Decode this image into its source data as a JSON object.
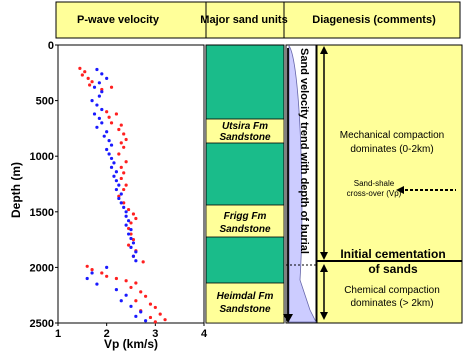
{
  "headers": {
    "col1": "P-wave velocity",
    "col2": "Major sand units",
    "col3": "Diagenesis (comments)"
  },
  "colors": {
    "header_bg": "#ffff99",
    "panel_bg": "#ffff99",
    "unit_green": "#1abc8a",
    "unit_yellow": "#ffff99",
    "trend_fill": "#ccccff",
    "series_red": "#ff2020",
    "series_blue": "#1a1aff"
  },
  "units": [
    {
      "line1": "Utsira Fm",
      "line2": "Sandstone"
    },
    {
      "line1": "Frigg Fm",
      "line2": "Sandstone"
    },
    {
      "line1": "Heimdal Fm",
      "line2": "Sandstone"
    }
  ],
  "trend_label": "Sand velocity trend with depth of burial",
  "comments": {
    "mech_line1": "Mechanical compaction",
    "mech_line2": "dominates (0-2km)",
    "crossover_line1": "Sand-shale",
    "crossover_line2": "cross-over (Vp)",
    "cement_line1": "Initial cementation",
    "cement_line2": "of sands",
    "chem_line1": "Chemical compaction",
    "chem_line2": "dominates (> 2km)"
  },
  "chart_data": {
    "type": "scatter",
    "xlabel": "Vp (km/s)",
    "ylabel": "Depth (m)",
    "xlim": [
      1,
      4
    ],
    "ylim": [
      0,
      2500
    ],
    "x_ticks": [
      1,
      2,
      3,
      4
    ],
    "y_ticks": [
      0,
      500,
      1000,
      1500,
      2000,
      2500
    ],
    "series": [
      {
        "color": "#ff2020",
        "points": [
          [
            1.45,
            210
          ],
          [
            1.55,
            240
          ],
          [
            1.5,
            270
          ],
          [
            1.62,
            300
          ],
          [
            1.7,
            330
          ],
          [
            1.65,
            360
          ],
          [
            2.1,
            380
          ],
          [
            1.9,
            400
          ],
          [
            2.0,
            600
          ],
          [
            2.2,
            620
          ],
          [
            2.05,
            650
          ],
          [
            2.1,
            700
          ],
          [
            2.3,
            720
          ],
          [
            2.25,
            760
          ],
          [
            2.35,
            800
          ],
          [
            2.4,
            850
          ],
          [
            2.3,
            880
          ],
          [
            2.35,
            920
          ],
          [
            2.25,
            980
          ],
          [
            2.4,
            1050
          ],
          [
            2.3,
            1100
          ],
          [
            2.35,
            1150
          ],
          [
            2.3,
            1200
          ],
          [
            2.4,
            1260
          ],
          [
            2.35,
            1300
          ],
          [
            2.25,
            1360
          ],
          [
            2.35,
            1420
          ],
          [
            2.45,
            1480
          ],
          [
            2.55,
            1520
          ],
          [
            2.6,
            1560
          ],
          [
            2.5,
            1600
          ],
          [
            2.45,
            1650
          ],
          [
            2.5,
            1700
          ],
          [
            2.55,
            1750
          ],
          [
            2.45,
            1800
          ],
          [
            2.6,
            1850
          ],
          [
            2.55,
            1900
          ],
          [
            2.75,
            1950
          ],
          [
            1.6,
            1990
          ],
          [
            1.7,
            2020
          ],
          [
            1.9,
            2050
          ],
          [
            2.0,
            2080
          ],
          [
            2.2,
            2100
          ],
          [
            2.4,
            2120
          ],
          [
            2.6,
            2140
          ],
          [
            2.5,
            2180
          ],
          [
            2.7,
            2220
          ],
          [
            2.8,
            2260
          ],
          [
            2.6,
            2300
          ],
          [
            2.9,
            2330
          ],
          [
            3.0,
            2360
          ],
          [
            2.7,
            2390
          ],
          [
            3.1,
            2420
          ],
          [
            2.9,
            2450
          ],
          [
            3.2,
            2470
          ],
          [
            3.0,
            2490
          ]
        ]
      },
      {
        "color": "#1a1aff",
        "points": [
          [
            1.8,
            220
          ],
          [
            1.9,
            260
          ],
          [
            2.0,
            300
          ],
          [
            1.85,
            340
          ],
          [
            1.75,
            380
          ],
          [
            1.9,
            420
          ],
          [
            1.85,
            460
          ],
          [
            1.7,
            500
          ],
          [
            1.8,
            540
          ],
          [
            1.9,
            580
          ],
          [
            1.75,
            620
          ],
          [
            1.85,
            660
          ],
          [
            1.9,
            700
          ],
          [
            1.8,
            740
          ],
          [
            2.0,
            780
          ],
          [
            1.95,
            820
          ],
          [
            2.05,
            860
          ],
          [
            2.1,
            900
          ],
          [
            2.0,
            940
          ],
          [
            2.05,
            980
          ],
          [
            2.1,
            1020
          ],
          [
            2.15,
            1060
          ],
          [
            2.1,
            1100
          ],
          [
            2.2,
            1140
          ],
          [
            2.15,
            1180
          ],
          [
            2.2,
            1220
          ],
          [
            2.25,
            1260
          ],
          [
            2.2,
            1300
          ],
          [
            2.3,
            1340
          ],
          [
            2.25,
            1380
          ],
          [
            2.3,
            1420
          ],
          [
            2.35,
            1460
          ],
          [
            2.4,
            1500
          ],
          [
            2.4,
            1540
          ],
          [
            2.45,
            1580
          ],
          [
            2.4,
            1620
          ],
          [
            2.5,
            1660
          ],
          [
            2.45,
            1700
          ],
          [
            2.5,
            1740
          ],
          [
            2.55,
            1780
          ],
          [
            2.5,
            1820
          ],
          [
            2.6,
            1860
          ],
          [
            2.55,
            1900
          ],
          [
            2.6,
            1940
          ],
          [
            2.0,
            2000
          ],
          [
            1.7,
            2050
          ],
          [
            1.6,
            2100
          ],
          [
            1.8,
            2150
          ],
          [
            2.2,
            2200
          ],
          [
            2.4,
            2250
          ],
          [
            2.3,
            2300
          ],
          [
            2.5,
            2350
          ],
          [
            2.7,
            2400
          ],
          [
            2.6,
            2440
          ],
          [
            2.8,
            2480
          ]
        ]
      }
    ]
  }
}
